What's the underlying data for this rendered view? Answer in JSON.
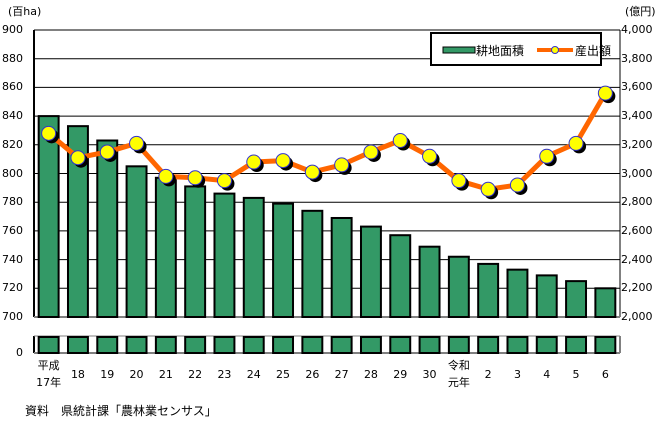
{
  "chart_data": {
    "type": "bar+line",
    "title": "",
    "left_axis": {
      "unit": "(百ha)",
      "ticks": [
        900,
        880,
        860,
        840,
        820,
        800,
        780,
        760,
        740,
        720,
        700,
        0
      ],
      "ylim": [
        700,
        900
      ],
      "break": true
    },
    "right_axis": {
      "unit": "(億円)",
      "ticks": [
        "4,000",
        "3,800",
        "3,600",
        "3,400",
        "3,200",
        "3,000",
        "2,800",
        "2,600",
        "2,400",
        "2,200",
        "2,000"
      ],
      "ylim": [
        2000,
        4000
      ]
    },
    "categories": [
      "平成\n17年",
      "18",
      "19",
      "20",
      "21",
      "22",
      "23",
      "24",
      "25",
      "26",
      "27",
      "28",
      "29",
      "30",
      "令和\n元年",
      "2",
      "3",
      "4",
      "5",
      "6"
    ],
    "series": [
      {
        "name": "耕地面積",
        "type": "bar",
        "axis": "left",
        "color": "#339966",
        "values": [
          840,
          833,
          823,
          805,
          797,
          791,
          786,
          783,
          779,
          774,
          769,
          763,
          757,
          749,
          742,
          737,
          733,
          729,
          725,
          720
        ]
      },
      {
        "name": "産出額",
        "type": "line",
        "axis": "right",
        "color": "#FF6600",
        "marker_color": "#FFFF00",
        "values": [
          3280,
          3110,
          3150,
          3210,
          2980,
          2970,
          2950,
          3080,
          3090,
          3010,
          3060,
          3150,
          3230,
          3120,
          2950,
          2890,
          2920,
          3120,
          3210,
          3560
        ]
      }
    ],
    "legend": {
      "position": "top-right",
      "entries": [
        "耕地面積",
        "産出額"
      ]
    },
    "grid": true,
    "source": "資料　県統計課「農林業センサス」"
  },
  "axes": {
    "left_unit": "(百ha)",
    "right_unit": "(億円)",
    "left_ticks": [
      "900",
      "880",
      "860",
      "840",
      "820",
      "800",
      "780",
      "760",
      "740",
      "720",
      "700"
    ],
    "left_zero": "0",
    "right_ticks": [
      "4,000",
      "3,800",
      "3,600",
      "3,400",
      "3,200",
      "3,000",
      "2,800",
      "2,600",
      "2,400",
      "2,200",
      "2,000"
    ]
  },
  "xlabels": [
    {
      "l1": "平成",
      "l2": "17年"
    },
    {
      "l1": "",
      "l2": "18"
    },
    {
      "l1": "",
      "l2": "19"
    },
    {
      "l1": "",
      "l2": "20"
    },
    {
      "l1": "",
      "l2": "21"
    },
    {
      "l1": "",
      "l2": "22"
    },
    {
      "l1": "",
      "l2": "23"
    },
    {
      "l1": "",
      "l2": "24"
    },
    {
      "l1": "",
      "l2": "25"
    },
    {
      "l1": "",
      "l2": "26"
    },
    {
      "l1": "",
      "l2": "27"
    },
    {
      "l1": "",
      "l2": "28"
    },
    {
      "l1": "",
      "l2": "29"
    },
    {
      "l1": "",
      "l2": "30"
    },
    {
      "l1": "令和",
      "l2": "元年"
    },
    {
      "l1": "",
      "l2": "2"
    },
    {
      "l1": "",
      "l2": "3"
    },
    {
      "l1": "",
      "l2": "4"
    },
    {
      "l1": "",
      "l2": "5"
    },
    {
      "l1": "",
      "l2": "6"
    }
  ],
  "legend": {
    "bar_label": "耕地面積",
    "line_label": "産出額"
  },
  "source": "資料　県統計課「農林業センサス」"
}
